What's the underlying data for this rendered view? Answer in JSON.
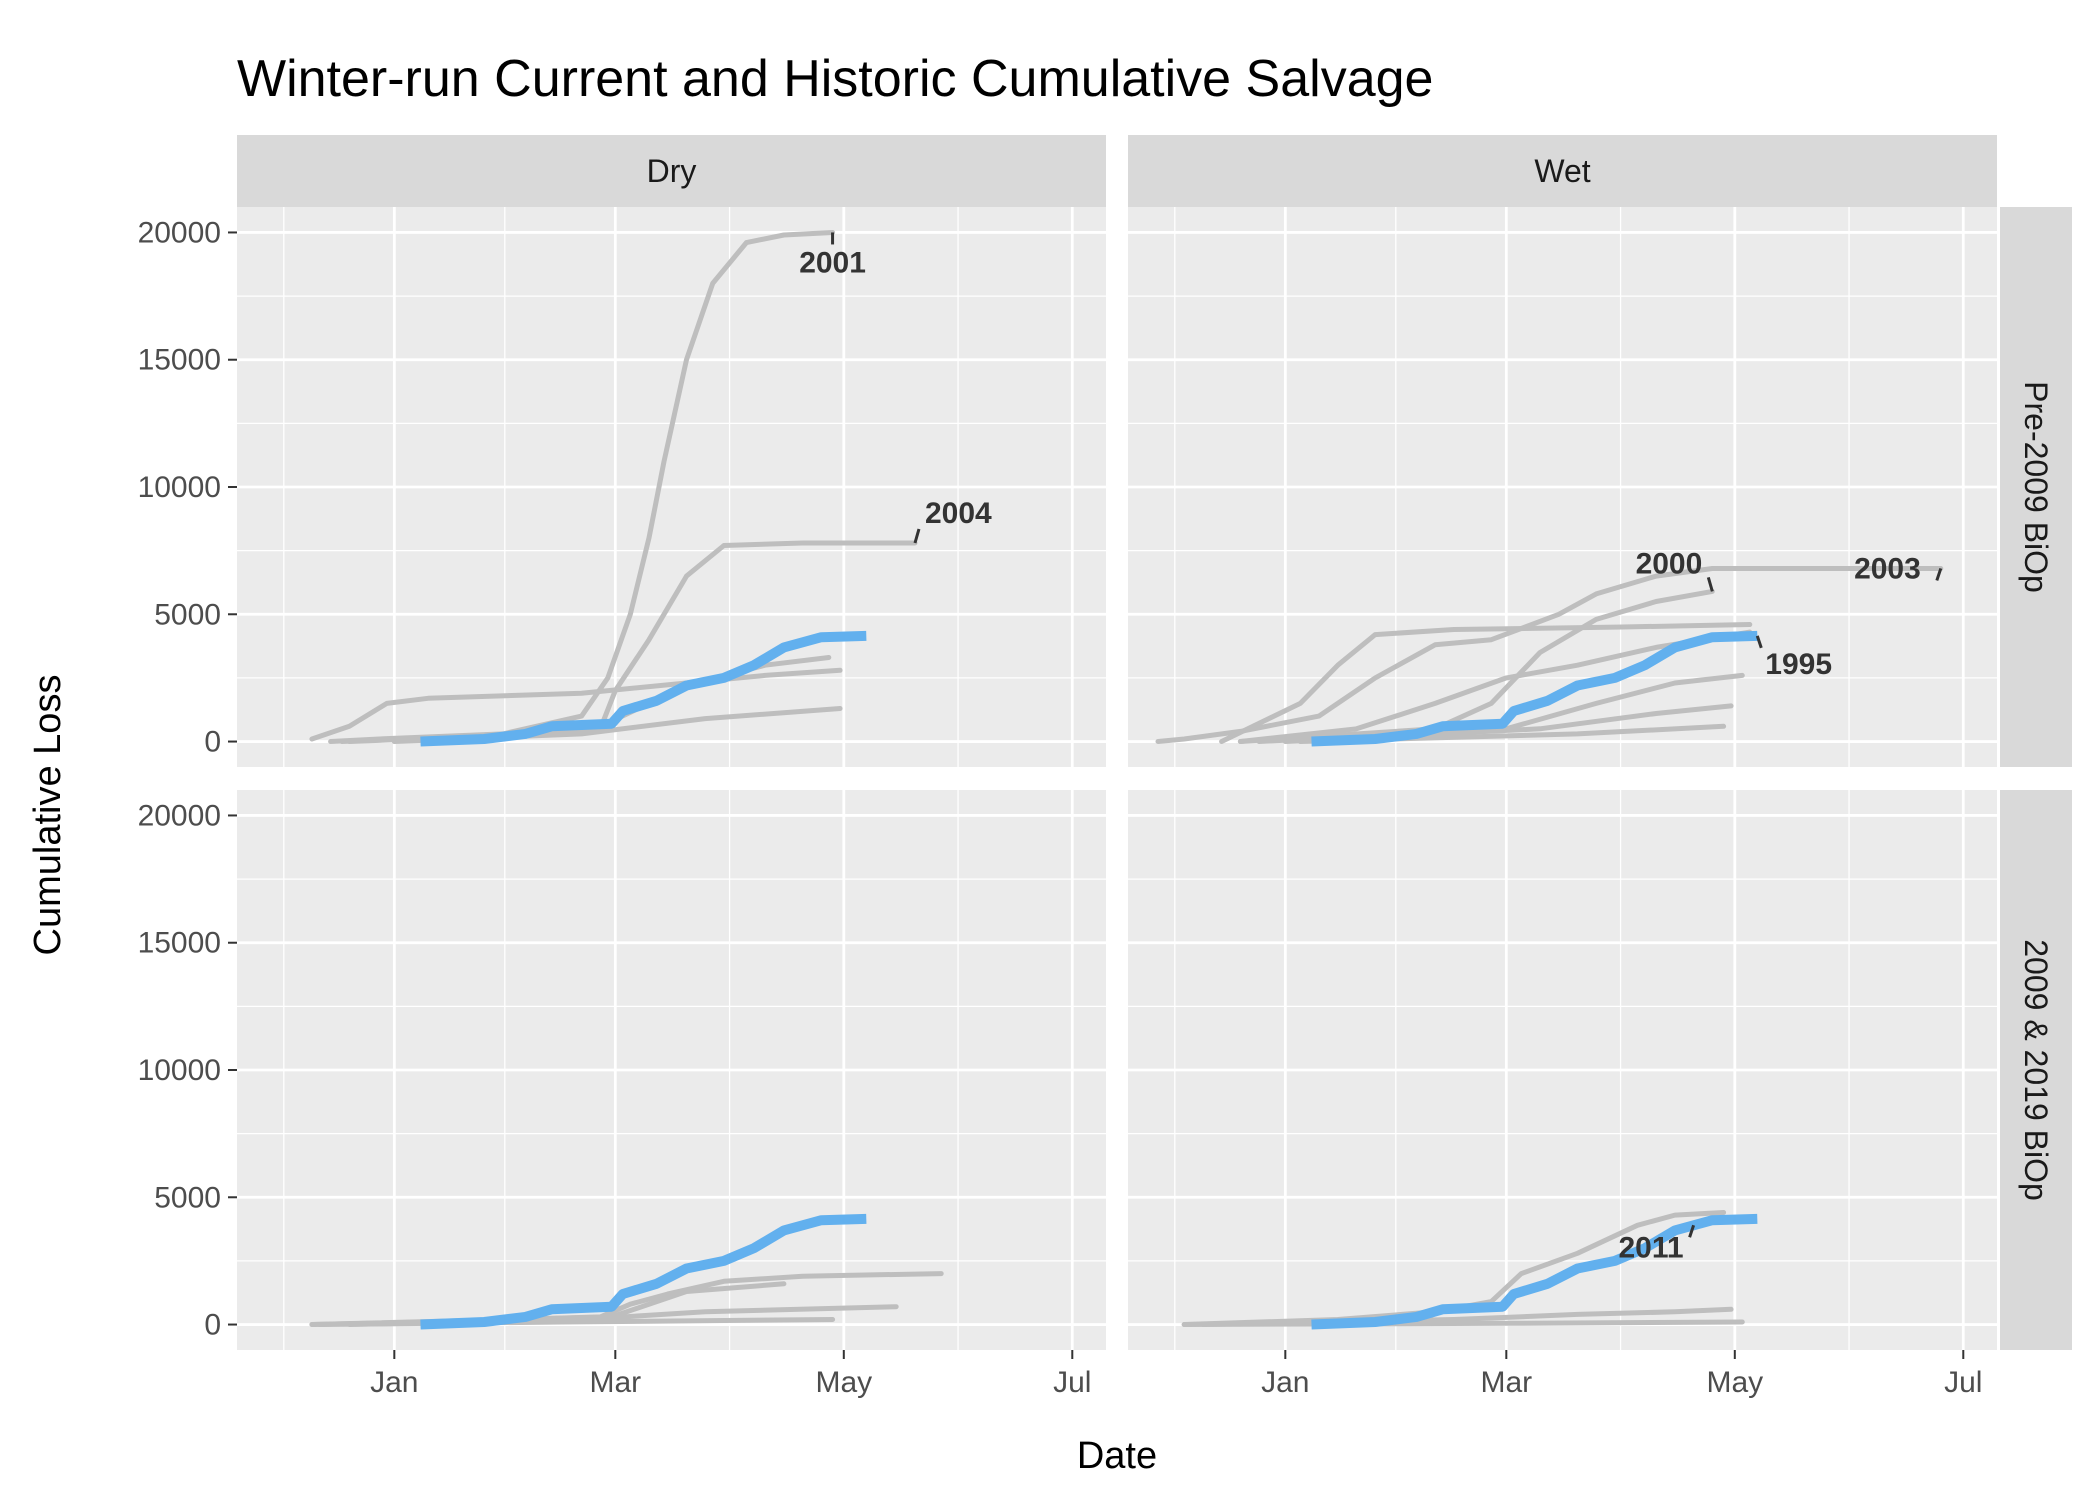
{
  "chart_data": {
    "type": "line",
    "title": "Winter-run Current and Historic Cumulative Salvage",
    "xlabel": "Date",
    "ylabel": "Cumulative Loss",
    "x_axis": {
      "type": "date",
      "range": [
        "Nov 20",
        "Jul 10"
      ],
      "ticks": [
        "Jan",
        "Mar",
        "May",
        "Jul"
      ]
    },
    "y_axis": {
      "range": [
        -1000,
        21000
      ],
      "ticks": [
        0,
        5000,
        10000,
        15000,
        20000
      ]
    },
    "facet_columns": [
      "Dry",
      "Wet"
    ],
    "facet_rows": [
      "Pre-2009 BiOp",
      "2009 & 2019 BiOp"
    ],
    "grid": true,
    "colors": {
      "historic": "#bebebe",
      "current": "#62b0ee",
      "panel_bg": "#ebebeb",
      "strip_bg": "#d9d9d9",
      "label_segment": "#333333"
    },
    "panels": [
      {
        "column": "Dry",
        "row": "Pre-2009 BiOp",
        "historic": [
          {
            "label": "2001",
            "points": [
              [
                "Dec 15",
                0
              ],
              [
                "Dec 28",
                100
              ],
              [
                "Jan 30",
                300
              ],
              [
                "Feb 20",
                1000
              ],
              [
                "Feb 27",
                2500
              ],
              [
                "Mar 5",
                5000
              ],
              [
                "Mar 10",
                8000
              ],
              [
                "Mar 14",
                11000
              ],
              [
                "Mar 20",
                15000
              ],
              [
                "Mar 27",
                18000
              ],
              [
                "Apr 5",
                19600
              ],
              [
                "Apr 15",
                19900
              ],
              [
                "Apr 28",
                20000
              ]
            ]
          },
          {
            "label": "2004",
            "points": [
              [
                "Dec 18",
                0
              ],
              [
                "Jan 20",
                200
              ],
              [
                "Feb 25",
                500
              ],
              [
                "Mar 1",
                2000
              ],
              [
                "Mar 10",
                4000
              ],
              [
                "Mar 20",
                6500
              ],
              [
                "Mar 30",
                7700
              ],
              [
                "Apr 20",
                7800
              ],
              [
                "May 20",
                7800
              ]
            ]
          },
          {
            "label": "",
            "points": [
              [
                "Dec 10",
                100
              ],
              [
                "Dec 20",
                600
              ],
              [
                "Dec 30",
                1500
              ],
              [
                "Jan 10",
                1700
              ],
              [
                "Feb 20",
                1900
              ],
              [
                "Mar 20",
                2300
              ],
              [
                "Apr 10",
                2600
              ],
              [
                "Apr 30",
                2800
              ]
            ]
          },
          {
            "label": "",
            "points": [
              [
                "Dec 20",
                0
              ],
              [
                "Feb 10",
                300
              ],
              [
                "Feb 28",
                800
              ],
              [
                "Mar 20",
                2200
              ],
              [
                "Apr 10",
                3000
              ],
              [
                "Apr 27",
                3300
              ]
            ]
          },
          {
            "label": "",
            "points": [
              [
                "Jan 1",
                0
              ],
              [
                "Feb 20",
                300
              ],
              [
                "Mar 25",
                900
              ],
              [
                "Apr 30",
                1300
              ]
            ]
          }
        ],
        "labels": [
          {
            "text": "2001",
            "at": [
              "Apr 28",
              20000
            ]
          },
          {
            "text": "2004",
            "at": [
              "May 20",
              7800
            ]
          }
        ],
        "current": [
          [
            "Jan 8",
            0
          ],
          [
            "Jan 25",
            100
          ],
          [
            "Feb 5",
            300
          ],
          [
            "Feb 12",
            600
          ],
          [
            "Feb 28",
            700
          ],
          [
            "Mar 3",
            1200
          ],
          [
            "Mar 12",
            1600
          ],
          [
            "Mar 20",
            2200
          ],
          [
            "Mar 30",
            2500
          ],
          [
            "Apr 7",
            3000
          ],
          [
            "Apr 15",
            3700
          ],
          [
            "Apr 25",
            4100
          ],
          [
            "May 7",
            4150
          ]
        ]
      },
      {
        "column": "Wet",
        "row": "Pre-2009 BiOp",
        "historic": [
          {
            "label": "2003",
            "points": [
              [
                "Nov 28",
                0
              ],
              [
                "Dec 5",
                100
              ],
              [
                "Dec 20",
                400
              ],
              [
                "Jan 10",
                1000
              ],
              [
                "Jan 25",
                2500
              ],
              [
                "Feb 10",
                3800
              ],
              [
                "Feb 25",
                4000
              ],
              [
                "Mar 15",
                5000
              ],
              [
                "Mar 25",
                5800
              ],
              [
                "Apr 10",
                6500
              ],
              [
                "Apr 25",
                6800
              ],
              [
                "Jun 25",
                6800
              ]
            ]
          },
          {
            "label": "2000",
            "points": [
              [
                "Dec 20",
                0
              ],
              [
                "Feb 10",
                500
              ],
              [
                "Feb 25",
                1500
              ],
              [
                "Mar 10",
                3500
              ],
              [
                "Mar 25",
                4800
              ],
              [
                "Apr 10",
                5500
              ],
              [
                "Apr 25",
                5900
              ]
            ]
          },
          {
            "label": "",
            "points": [
              [
                "Dec 15",
                0
              ],
              [
                "Jan 5",
                1500
              ],
              [
                "Jan 15",
                3000
              ],
              [
                "Jan 25",
                4200
              ],
              [
                "Feb 15",
                4400
              ],
              [
                "Apr 1",
                4500
              ],
              [
                "May 5",
                4600
              ]
            ]
          },
          {
            "label": "",
            "points": [
              [
                "Dec 20",
                0
              ],
              [
                "Jan 20",
                500
              ],
              [
                "Feb 10",
                1500
              ],
              [
                "Mar 1",
                2500
              ],
              [
                "Mar 20",
                3000
              ],
              [
                "Apr 10",
                3700
              ],
              [
                "May 5",
                4300
              ]
            ]
          },
          {
            "label": "",
            "points": [
              [
                "Dec 25",
                0
              ],
              [
                "Mar 1",
                500
              ],
              [
                "Mar 25",
                1500
              ],
              [
                "Apr 15",
                2300
              ],
              [
                "May 3",
                2600
              ]
            ]
          },
          {
            "label": "",
            "points": [
              [
                "Jan 1",
                0
              ],
              [
                "Mar 10",
                500
              ],
              [
                "Apr 10",
                1100
              ],
              [
                "Apr 30",
                1400
              ]
            ]
          },
          {
            "label": "",
            "points": [
              [
                "Jan 5",
                0
              ],
              [
                "Mar 20",
                300
              ],
              [
                "Apr 28",
                600
              ]
            ]
          }
        ],
        "labels": [
          {
            "text": "2000",
            "at": [
              "Apr 25",
              5900
            ]
          },
          {
            "text": "2003",
            "at": [
              "Jun 25",
              6800
            ]
          },
          {
            "text": "1995",
            "at": [
              "May 7",
              4150
            ]
          }
        ],
        "current": [
          [
            "Jan 8",
            0
          ],
          [
            "Jan 25",
            100
          ],
          [
            "Feb 5",
            300
          ],
          [
            "Feb 12",
            600
          ],
          [
            "Feb 28",
            700
          ],
          [
            "Mar 3",
            1200
          ],
          [
            "Mar 12",
            1600
          ],
          [
            "Mar 20",
            2200
          ],
          [
            "Mar 30",
            2500
          ],
          [
            "Apr 7",
            3000
          ],
          [
            "Apr 15",
            3700
          ],
          [
            "Apr 25",
            4100
          ],
          [
            "May 7",
            4150
          ]
        ]
      },
      {
        "column": "Dry",
        "row": "2009 & 2019 BiOp",
        "historic": [
          {
            "label": "",
            "points": [
              [
                "Dec 10",
                0
              ],
              [
                "Jan 10",
                100
              ],
              [
                "Feb 25",
                300
              ],
              [
                "Mar 5",
                800
              ],
              [
                "Mar 15",
                1200
              ],
              [
                "Mar 30",
                1700
              ],
              [
                "Apr 20",
                1900
              ],
              [
                "May 27",
                2000
              ]
            ]
          },
          {
            "label": "",
            "points": [
              [
                "Dec 10",
                0
              ],
              [
                "Feb 28",
                300
              ],
              [
                "Mar 20",
                1300
              ],
              [
                "Apr 15",
                1600
              ]
            ]
          },
          {
            "label": "",
            "points": [
              [
                "Dec 20",
                0
              ],
              [
                "Feb 20",
                200
              ],
              [
                "Mar 25",
                500
              ],
              [
                "May 15",
                700
              ]
            ]
          },
          {
            "label": "",
            "points": [
              [
                "Dec 12",
                0
              ],
              [
                "Feb 15",
                100
              ],
              [
                "Apr 28",
                200
              ]
            ]
          }
        ],
        "labels": [],
        "current": [
          [
            "Jan 8",
            0
          ],
          [
            "Jan 25",
            100
          ],
          [
            "Feb 5",
            300
          ],
          [
            "Feb 12",
            600
          ],
          [
            "Feb 28",
            700
          ],
          [
            "Mar 3",
            1200
          ],
          [
            "Mar 12",
            1600
          ],
          [
            "Mar 20",
            2200
          ],
          [
            "Mar 30",
            2500
          ],
          [
            "Apr 7",
            3000
          ],
          [
            "Apr 15",
            3700
          ],
          [
            "Apr 25",
            4100
          ],
          [
            "May 7",
            4150
          ]
        ]
      },
      {
        "column": "Wet",
        "row": "2009 & 2019 BiOp",
        "historic": [
          {
            "label": "2011",
            "points": [
              [
                "Dec 5",
                0
              ],
              [
                "Jan 15",
                200
              ],
              [
                "Feb 10",
                500
              ],
              [
                "Feb 25",
                900
              ],
              [
                "Mar 5",
                2000
              ],
              [
                "Mar 20",
                2800
              ],
              [
                "Apr 5",
                3900
              ],
              [
                "Apr 15",
                4300
              ],
              [
                "Apr 28",
                4400
              ]
            ]
          },
          {
            "label": "",
            "points": [
              [
                "Dec 10",
                0
              ],
              [
                "Feb 15",
                200
              ],
              [
                "Mar 20",
                400
              ],
              [
                "Apr 15",
                500
              ],
              [
                "Apr 30",
                600
              ]
            ]
          },
          {
            "label": "",
            "points": [
              [
                "Dec 5",
                0
              ],
              [
                "Mar 1",
                50
              ],
              [
                "May 3",
                100
              ]
            ]
          }
        ],
        "labels": [
          {
            "text": "2011",
            "at": [
              "Apr 20",
              3900
            ]
          }
        ],
        "current": [
          [
            "Jan 8",
            0
          ],
          [
            "Jan 25",
            100
          ],
          [
            "Feb 5",
            300
          ],
          [
            "Feb 12",
            600
          ],
          [
            "Feb 28",
            700
          ],
          [
            "Mar 3",
            1200
          ],
          [
            "Mar 12",
            1600
          ],
          [
            "Mar 20",
            2200
          ],
          [
            "Mar 30",
            2500
          ],
          [
            "Apr 7",
            3000
          ],
          [
            "Apr 15",
            3700
          ],
          [
            "Apr 25",
            4100
          ],
          [
            "May 7",
            4150
          ]
        ]
      }
    ]
  }
}
